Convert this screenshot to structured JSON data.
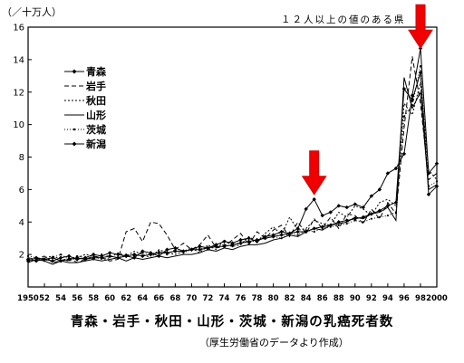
{
  "chart_data": {
    "type": "line",
    "title": "青森・岩手・秋田・山形・茨城・新潟の乳癌死者数",
    "subtitle": "（厚生労働省のデータより作成）",
    "unit_label": "（／十万人）",
    "annotation": "１２人以上の値のある県",
    "ylim": [
      0,
      16
    ],
    "y_ticks": [
      "2",
      "4",
      "6",
      "8",
      "10",
      "12",
      "14",
      "16"
    ],
    "xlim": [
      1950,
      2000
    ],
    "x_ticks": [
      {
        "value": 1950,
        "label": "1950"
      },
      {
        "value": 1952,
        "label": "52"
      },
      {
        "value": 1954,
        "label": "54"
      },
      {
        "value": 1956,
        "label": "56"
      },
      {
        "value": 1958,
        "label": "58"
      },
      {
        "value": 1960,
        "label": "60"
      },
      {
        "value": 1962,
        "label": "62"
      },
      {
        "value": 1964,
        "label": "64"
      },
      {
        "value": 1966,
        "label": "66"
      },
      {
        "value": 1968,
        "label": "68"
      },
      {
        "value": 1970,
        "label": "70"
      },
      {
        "value": 1972,
        "label": "72"
      },
      {
        "value": 1974,
        "label": "74"
      },
      {
        "value": 1976,
        "label": "76"
      },
      {
        "value": 1978,
        "label": "78"
      },
      {
        "value": 1980,
        "label": "80"
      },
      {
        "value": 1982,
        "label": "82"
      },
      {
        "value": 1984,
        "label": "84"
      },
      {
        "value": 1986,
        "label": "86"
      },
      {
        "value": 1988,
        "label": "88"
      },
      {
        "value": 1990,
        "label": "90"
      },
      {
        "value": 1992,
        "label": "92"
      },
      {
        "value": 1994,
        "label": "94"
      },
      {
        "value": 1996,
        "label": "96"
      },
      {
        "value": 1998,
        "label": "98"
      },
      {
        "value": 2000,
        "label": "2000"
      }
    ],
    "grid": false,
    "legend_position": "top-left",
    "arrows": [
      {
        "x": 1985,
        "y_tip": 5.7
      },
      {
        "x": 1998,
        "y_tip": 14.7
      }
    ],
    "x": [
      1950,
      1951,
      1952,
      1953,
      1954,
      1955,
      1956,
      1957,
      1958,
      1959,
      1960,
      1961,
      1962,
      1963,
      1964,
      1965,
      1966,
      1967,
      1968,
      1969,
      1970,
      1971,
      1972,
      1973,
      1974,
      1975,
      1976,
      1977,
      1978,
      1979,
      1980,
      1981,
      1982,
      1983,
      1984,
      1985,
      1986,
      1987,
      1988,
      1989,
      1990,
      1991,
      1992,
      1993,
      1994,
      1995,
      1996,
      1997,
      1998,
      1999,
      2000
    ],
    "series": [
      {
        "name": "青森",
        "dash": "",
        "marker": "diamond",
        "values": [
          1.6,
          1.8,
          1.7,
          1.6,
          1.8,
          1.9,
          1.7,
          1.8,
          2.0,
          1.9,
          2.1,
          2.0,
          1.9,
          1.8,
          2.2,
          2.1,
          1.9,
          2.3,
          2.4,
          2.2,
          2.3,
          2.5,
          2.4,
          2.6,
          2.8,
          2.7,
          2.9,
          3.0,
          2.8,
          3.1,
          3.2,
          3.4,
          3.3,
          3.6,
          4.8,
          5.4,
          4.4,
          4.6,
          5.0,
          4.9,
          5.1,
          4.9,
          5.6,
          6.0,
          7.0,
          7.3,
          8.2,
          11.8,
          14.7,
          7.0,
          7.6
        ]
      },
      {
        "name": "岩手",
        "dash": "5,3",
        "marker": "none",
        "values": [
          1.8,
          1.7,
          1.9,
          1.5,
          1.6,
          1.8,
          1.5,
          1.7,
          1.9,
          1.8,
          1.6,
          1.7,
          3.4,
          3.6,
          2.8,
          4.0,
          3.9,
          3.2,
          2.3,
          2.7,
          2.3,
          2.6,
          3.2,
          2.4,
          2.5,
          2.9,
          3.3,
          2.6,
          3.4,
          3.0,
          3.5,
          3.8,
          3.1,
          4.0,
          3.3,
          4.2,
          3.6,
          4.3,
          3.6,
          4.5,
          4.4,
          3.9,
          4.8,
          4.2,
          5.2,
          4.5,
          9.8,
          14.2,
          11.3,
          6.6,
          7.0
        ]
      },
      {
        "name": "秋田",
        "dash": "2,2",
        "marker": "none",
        "values": [
          1.7,
          1.6,
          1.8,
          1.9,
          1.7,
          1.6,
          1.8,
          2.0,
          1.9,
          1.7,
          1.8,
          2.1,
          1.9,
          2.2,
          2.0,
          1.8,
          2.3,
          2.1,
          2.0,
          2.2,
          2.4,
          2.1,
          2.6,
          2.3,
          2.9,
          2.5,
          2.6,
          3.1,
          2.8,
          3.3,
          3.7,
          3.2,
          4.3,
          3.5,
          3.6,
          4.1,
          3.9,
          3.8,
          4.6,
          4.3,
          5.0,
          4.8,
          4.4,
          5.2,
          5.4,
          5.0,
          11.3,
          10.6,
          12.6,
          7.2,
          6.6
        ]
      },
      {
        "name": "山形",
        "dash": "",
        "marker": "none",
        "values": [
          1.5,
          1.7,
          1.6,
          1.4,
          1.6,
          1.5,
          1.5,
          1.6,
          1.7,
          1.6,
          1.7,
          1.8,
          1.6,
          1.8,
          1.7,
          1.8,
          1.9,
          1.8,
          1.9,
          2.0,
          2.0,
          2.1,
          2.3,
          2.2,
          2.4,
          2.3,
          2.5,
          2.6,
          2.6,
          2.7,
          2.9,
          3.0,
          3.2,
          3.1,
          3.4,
          3.6,
          3.5,
          3.8,
          3.9,
          4.0,
          4.3,
          4.2,
          4.5,
          4.6,
          4.9,
          4.1,
          12.9,
          11.0,
          12.0,
          6.0,
          6.3
        ]
      },
      {
        "name": "茨城",
        "dash": "1,2",
        "marker": "dot",
        "values": [
          1.9,
          1.8,
          1.6,
          1.8,
          2.0,
          1.7,
          1.9,
          1.8,
          1.7,
          2.0,
          1.9,
          1.8,
          2.0,
          1.9,
          2.1,
          2.0,
          2.2,
          2.0,
          2.3,
          2.1,
          2.3,
          2.4,
          2.3,
          2.5,
          2.6,
          2.5,
          2.8,
          2.7,
          2.9,
          3.0,
          3.1,
          3.0,
          3.3,
          3.2,
          3.5,
          3.4,
          3.6,
          3.7,
          3.8,
          3.9,
          4.1,
          4.0,
          4.2,
          4.3,
          4.4,
          4.6,
          10.5,
          11.2,
          13.6,
          6.2,
          6.5
        ]
      },
      {
        "name": "新潟",
        "dash": "",
        "marker": "diamond",
        "values": [
          1.7,
          1.6,
          1.7,
          1.8,
          1.6,
          1.7,
          1.8,
          1.7,
          1.8,
          1.8,
          1.9,
          1.8,
          1.9,
          2.0,
          1.9,
          2.0,
          2.1,
          2.1,
          2.2,
          2.2,
          2.3,
          2.3,
          2.4,
          2.5,
          2.5,
          2.6,
          2.7,
          2.8,
          2.9,
          3.0,
          3.1,
          3.2,
          3.3,
          3.4,
          3.4,
          3.6,
          3.7,
          3.8,
          4.0,
          4.1,
          4.2,
          4.3,
          4.5,
          4.7,
          5.0,
          5.2,
          12.2,
          11.5,
          13.2,
          5.7,
          6.2
        ]
      }
    ]
  }
}
